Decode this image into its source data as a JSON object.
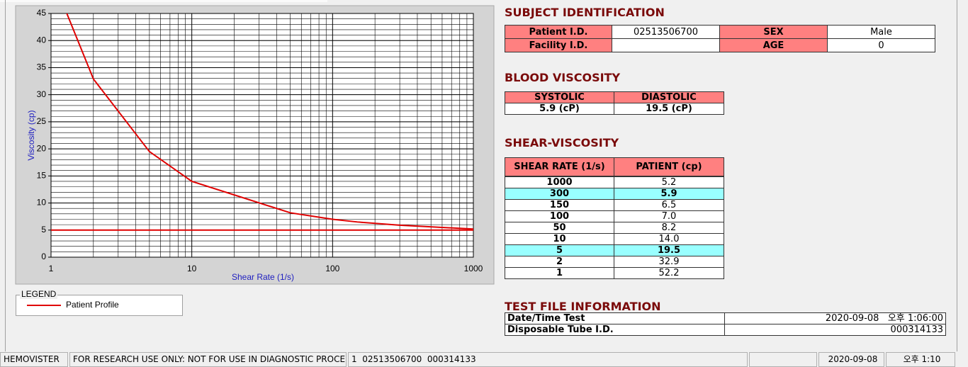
{
  "chart_data": {
    "type": "line",
    "xlabel": "Shear Rate (1/s)",
    "ylabel": "Viscosity (cp)",
    "xscale": "log",
    "xlim": [
      1,
      1000
    ],
    "xticks": [
      1,
      10,
      100,
      1000
    ],
    "ylim": [
      0,
      45
    ],
    "yticks": [
      0,
      5,
      10,
      15,
      20,
      25,
      30,
      35,
      40,
      45
    ],
    "grid": true,
    "threshold": 5,
    "series": [
      {
        "name": "Patient Profile",
        "color": "#e00000",
        "x": [
          1,
          2,
          5,
          10,
          50,
          100,
          150,
          300,
          1000
        ],
        "values": [
          52.2,
          32.9,
          19.5,
          14.0,
          8.2,
          7.0,
          6.5,
          5.9,
          5.2
        ]
      }
    ]
  },
  "legend_title": "LEGEND",
  "subject": {
    "title": "SUBJECT IDENTIFICATION",
    "rows": [
      [
        "Patient I.D.",
        "02513506700",
        "SEX",
        "Male"
      ],
      [
        "Facility I.D.",
        null,
        "AGE",
        "0"
      ]
    ]
  },
  "blood": {
    "title": "BLOOD VISCOSITY",
    "headers": [
      "SYSTOLIC",
      "DIASTOLIC"
    ],
    "values": [
      "5.9 (cP)",
      "19.5 (cP)"
    ]
  },
  "shear": {
    "title": "SHEAR-VISCOSITY",
    "headers": [
      "SHEAR RATE (1/s)",
      "PATIENT (cp)"
    ],
    "rows": [
      [
        "1000",
        "5.2"
      ],
      [
        "300",
        "5.9"
      ],
      [
        "150",
        "6.5"
      ],
      [
        "100",
        "7.0"
      ],
      [
        "50",
        "8.2"
      ],
      [
        "10",
        "14.0"
      ],
      [
        "5",
        "19.5"
      ],
      [
        "2",
        "32.9"
      ],
      [
        "1",
        "52.2"
      ]
    ],
    "highlight": [
      1,
      6
    ]
  },
  "test_file": {
    "title": "TEST FILE INFORMATION",
    "rows": [
      [
        "Date/Time Test",
        "2020-09-08   오후 1:06:00"
      ],
      [
        "Disposable Tube I.D.",
        "000314133"
      ]
    ]
  },
  "status_bar": [
    "HEMOVISTER",
    "FOR RESEARCH USE ONLY: NOT FOR USE IN DIAGNOSTIC PROCEDURES",
    "1  02513506700  000314133",
    null,
    "2020-09-08",
    "오후 1:10"
  ]
}
